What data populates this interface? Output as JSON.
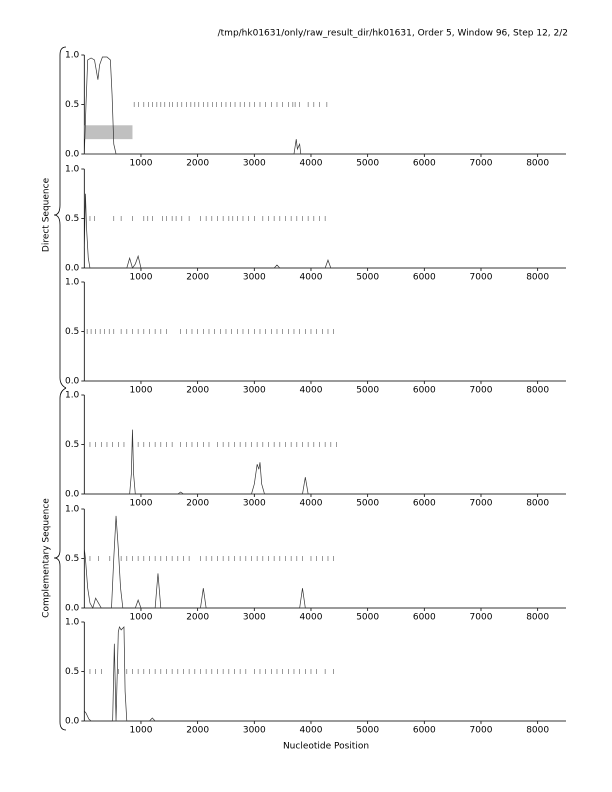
{
  "title": "/tmp/hk01631/only/raw_result_dir/hk01631, Order 5, Window 96, Step 12, 2/2",
  "xlabel": "Nucleotide Position",
  "group_labels": [
    "Direct Sequence",
    "Complementary Sequence"
  ],
  "chart_data": [
    {
      "type": "line",
      "color": "#333333",
      "xlim": [
        0,
        8500
      ],
      "ylim": [
        0,
        1
      ],
      "xticks": [
        1000,
        2000,
        3000,
        4000,
        5000,
        6000,
        7000,
        8000
      ],
      "yticks": [
        {
          "value": 0,
          "label": "0.0"
        },
        0.5,
        {
          "value": 1,
          "label": "1.0"
        }
      ],
      "x": [
        0,
        30,
        60,
        120,
        180,
        210,
        240,
        270,
        320,
        400,
        460,
        490,
        520,
        560,
        3600,
        3700,
        3740,
        3760,
        3800,
        3820,
        3900,
        8500
      ],
      "values": [
        0,
        0.5,
        0.95,
        0.97,
        0.95,
        0.85,
        0.75,
        0.9,
        0.98,
        0.98,
        0.95,
        0.6,
        0.1,
        0,
        0,
        0,
        0.15,
        0.05,
        0.1,
        0,
        0,
        0
      ],
      "marks": {
        "y": 0.5,
        "x": [
          880,
          960,
          1050,
          1130,
          1200,
          1280,
          1350,
          1420,
          1500,
          1560,
          1640,
          1720,
          1800,
          1880,
          1950,
          2020,
          2100,
          2180,
          2260,
          2330,
          2420,
          2500,
          2580,
          2660,
          2750,
          2830,
          2920,
          3000,
          3100,
          3200,
          3300,
          3400,
          3500,
          3600,
          3680,
          3720,
          3800,
          3950,
          4050,
          4150,
          4280
        ]
      },
      "highlight": {
        "x": [
          0,
          850
        ],
        "y": [
          0.15,
          0.29
        ],
        "color": "#c0c0c0"
      }
    },
    {
      "type": "line",
      "color": "#333333",
      "xlim": [
        0,
        8500
      ],
      "ylim": [
        0,
        1
      ],
      "xticks": [
        1000,
        2000,
        3000,
        4000,
        5000,
        6000,
        7000,
        8000
      ],
      "yticks": [
        {
          "value": 0,
          "label": "0.0"
        },
        0.5,
        {
          "value": 1,
          "label": "1.0"
        }
      ],
      "x": [
        0,
        20,
        40,
        70,
        100,
        750,
        800,
        850,
        900,
        950,
        1000,
        3350,
        3400,
        3450,
        4250,
        4300,
        4350,
        8500
      ],
      "values": [
        0.2,
        0.75,
        0.4,
        0.1,
        0,
        0,
        0.1,
        0,
        0.04,
        0.12,
        0,
        0,
        0.03,
        0,
        0,
        0.08,
        0,
        0
      ],
      "marks": {
        "y": 0.5,
        "x": [
          100,
          180,
          520,
          650,
          850,
          1050,
          1120,
          1200,
          1380,
          1450,
          1550,
          1620,
          1720,
          1850,
          2050,
          2150,
          2250,
          2350,
          2450,
          2550,
          2620,
          2700,
          2800,
          2900,
          3000,
          3150,
          3250,
          3350,
          3450,
          3550,
          3650,
          3750,
          3850,
          3950,
          4050,
          4150,
          4250
        ]
      }
    },
    {
      "type": "line",
      "color": "#333333",
      "xlim": [
        0,
        8500
      ],
      "ylim": [
        0,
        1
      ],
      "xticks": [
        1000,
        2000,
        3000,
        4000,
        5000,
        6000,
        7000,
        8000
      ],
      "yticks": [
        {
          "value": 0,
          "label": "0.0"
        },
        0.5,
        {
          "value": 1,
          "label": "1.0"
        }
      ],
      "x": [
        0,
        8500
      ],
      "values": [
        0,
        0
      ],
      "marks": {
        "y": 0.5,
        "x": [
          50,
          120,
          200,
          280,
          360,
          440,
          520,
          650,
          750,
          850,
          950,
          1050,
          1150,
          1250,
          1350,
          1450,
          1700,
          1800,
          1900,
          2000,
          2100,
          2200,
          2300,
          2400,
          2500,
          2600,
          2700,
          2800,
          2900,
          3000,
          3100,
          3200,
          3300,
          3400,
          3500,
          3600,
          3700,
          3800,
          3900,
          4000,
          4100,
          4200,
          4300,
          4400
        ]
      }
    },
    {
      "type": "line",
      "color": "#333333",
      "xlim": [
        0,
        8500
      ],
      "ylim": [
        0,
        1
      ],
      "xticks": [
        1000,
        2000,
        3000,
        4000,
        5000,
        6000,
        7000,
        8000
      ],
      "yticks": [
        {
          "value": 0,
          "label": "0.0"
        },
        0.5,
        {
          "value": 1,
          "label": "1.0"
        }
      ],
      "x": [
        0,
        800,
        830,
        850,
        870,
        900,
        1650,
        1700,
        1750,
        2950,
        3000,
        3050,
        3080,
        3100,
        3130,
        3180,
        3850,
        3900,
        3950,
        8500
      ],
      "values": [
        0,
        0,
        0.2,
        0.65,
        0.2,
        0,
        0,
        0.02,
        0,
        0,
        0.1,
        0.3,
        0.25,
        0.32,
        0.1,
        0,
        0,
        0.17,
        0,
        0
      ],
      "marks": {
        "y": 0.5,
        "x": [
          100,
          200,
          300,
          400,
          500,
          600,
          700,
          850,
          950,
          1050,
          1150,
          1250,
          1350,
          1450,
          1550,
          1700,
          1800,
          1900,
          2000,
          2100,
          2200,
          2350,
          2450,
          2550,
          2650,
          2750,
          2850,
          2950,
          3050,
          3150,
          3250,
          3350,
          3450,
          3550,
          3650,
          3750,
          3850,
          3950,
          4050,
          4150,
          4250,
          4350,
          4450
        ]
      }
    },
    {
      "type": "line",
      "color": "#333333",
      "xlim": [
        0,
        8500
      ],
      "ylim": [
        0,
        1
      ],
      "xticks": [
        1000,
        2000,
        3000,
        4000,
        5000,
        6000,
        7000,
        8000
      ],
      "yticks": [
        {
          "value": 0,
          "label": "0.0"
        },
        0.5,
        {
          "value": 1,
          "label": "1.0"
        }
      ],
      "x": [
        0,
        20,
        60,
        100,
        150,
        200,
        250,
        300,
        480,
        520,
        560,
        600,
        640,
        680,
        900,
        950,
        1000,
        1250,
        1300,
        1350,
        2050,
        2100,
        2150,
        3800,
        3850,
        3900,
        8500
      ],
      "values": [
        0.6,
        0.5,
        0.2,
        0.05,
        0,
        0.1,
        0.05,
        0,
        0,
        0.5,
        0.93,
        0.6,
        0.2,
        0,
        0,
        0.08,
        0,
        0,
        0.35,
        0,
        0,
        0.2,
        0,
        0,
        0.2,
        0,
        0
      ],
      "marks": {
        "y": 0.5,
        "x": [
          100,
          250,
          450,
          650,
          750,
          850,
          950,
          1050,
          1150,
          1250,
          1350,
          1450,
          1550,
          1650,
          1750,
          1850,
          2050,
          2150,
          2250,
          2350,
          2450,
          2550,
          2650,
          2750,
          2850,
          2950,
          3050,
          3150,
          3250,
          3350,
          3450,
          3550,
          3650,
          3750,
          3850,
          4000,
          4100,
          4200,
          4300,
          4400
        ]
      }
    },
    {
      "type": "line",
      "color": "#333333",
      "xlim": [
        0,
        8500
      ],
      "ylim": [
        0,
        1
      ],
      "xticks": [
        1000,
        2000,
        3000,
        4000,
        5000,
        6000,
        7000,
        8000
      ],
      "yticks": [
        {
          "value": 0,
          "label": "0.0"
        },
        0.5,
        {
          "value": 1,
          "label": "1.0"
        }
      ],
      "x": [
        0,
        30,
        80,
        120,
        500,
        530,
        560,
        600,
        620,
        650,
        700,
        720,
        750,
        1150,
        1200,
        1250,
        8500
      ],
      "values": [
        0.1,
        0.08,
        0.02,
        0,
        0,
        0.78,
        0,
        0.9,
        0.95,
        0.92,
        0.95,
        0.3,
        0,
        0,
        0.03,
        0,
        0
      ],
      "marks": {
        "y": 0.5,
        "x": [
          100,
          200,
          300,
          600,
          750,
          850,
          950,
          1050,
          1150,
          1250,
          1350,
          1450,
          1550,
          1650,
          1750,
          1850,
          1950,
          2050,
          2150,
          2250,
          2350,
          2450,
          2550,
          2650,
          2750,
          2850,
          3000,
          3100,
          3200,
          3300,
          3400,
          3500,
          3600,
          3700,
          3800,
          3900,
          4000,
          4100,
          4250,
          4400
        ]
      }
    }
  ]
}
